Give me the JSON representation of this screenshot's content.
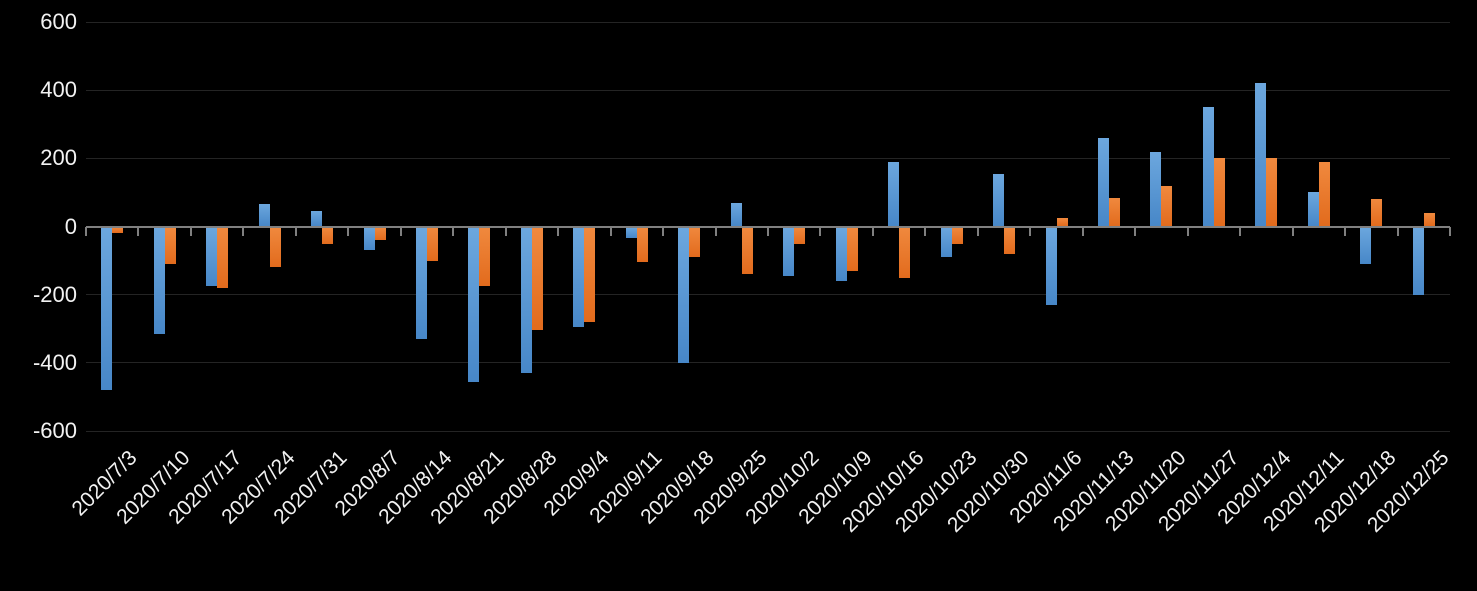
{
  "chart_data": {
    "type": "bar",
    "title": "",
    "legend": "none",
    "grid": "horizontal-gridlines",
    "background_color": "#000000",
    "axis_line_color": "#808080",
    "gridline_color": "#242424",
    "tick_label_color": "#F2F2F2",
    "ylim": [
      -600,
      600
    ],
    "yticks": [
      600,
      400,
      200,
      0,
      -200,
      -400,
      -600
    ],
    "categories": [
      "2020/7/3",
      "2020/7/10",
      "2020/7/17",
      "2020/7/24",
      "2020/7/31",
      "2020/8/7",
      "2020/8/14",
      "2020/8/21",
      "2020/8/28",
      "2020/9/4",
      "2020/9/11",
      "2020/9/18",
      "2020/9/25",
      "2020/10/2",
      "2020/10/9",
      "2020/10/16",
      "2020/10/23",
      "2020/10/30",
      "2020/11/6",
      "2020/11/13",
      "2020/11/20",
      "2020/11/27",
      "2020/12/4",
      "2020/12/11",
      "2020/12/18",
      "2020/12/25"
    ],
    "series": [
      {
        "name": "blue-series",
        "color": "#5B9BD5",
        "gradient_top": "#6CA7DE",
        "gradient_bottom": "#4787C8",
        "values": [
          -480,
          -315,
          -175,
          65,
          45,
          -70,
          -330,
          -455,
          -430,
          -295,
          -35,
          -400,
          70,
          -145,
          -160,
          190,
          -90,
          155,
          -230,
          260,
          220,
          350,
          420,
          100,
          -110,
          -200
        ]
      },
      {
        "name": "orange-series",
        "color": "#ED7D31",
        "gradient_top": "#F0893E",
        "gradient_bottom": "#E26B1D",
        "values": [
          -20,
          -110,
          -180,
          -120,
          -50,
          -40,
          -100,
          -175,
          -305,
          -280,
          -105,
          -90,
          -140,
          -50,
          -130,
          -150,
          -50,
          -80,
          25,
          85,
          120,
          200,
          200,
          190,
          80,
          40
        ]
      }
    ]
  }
}
